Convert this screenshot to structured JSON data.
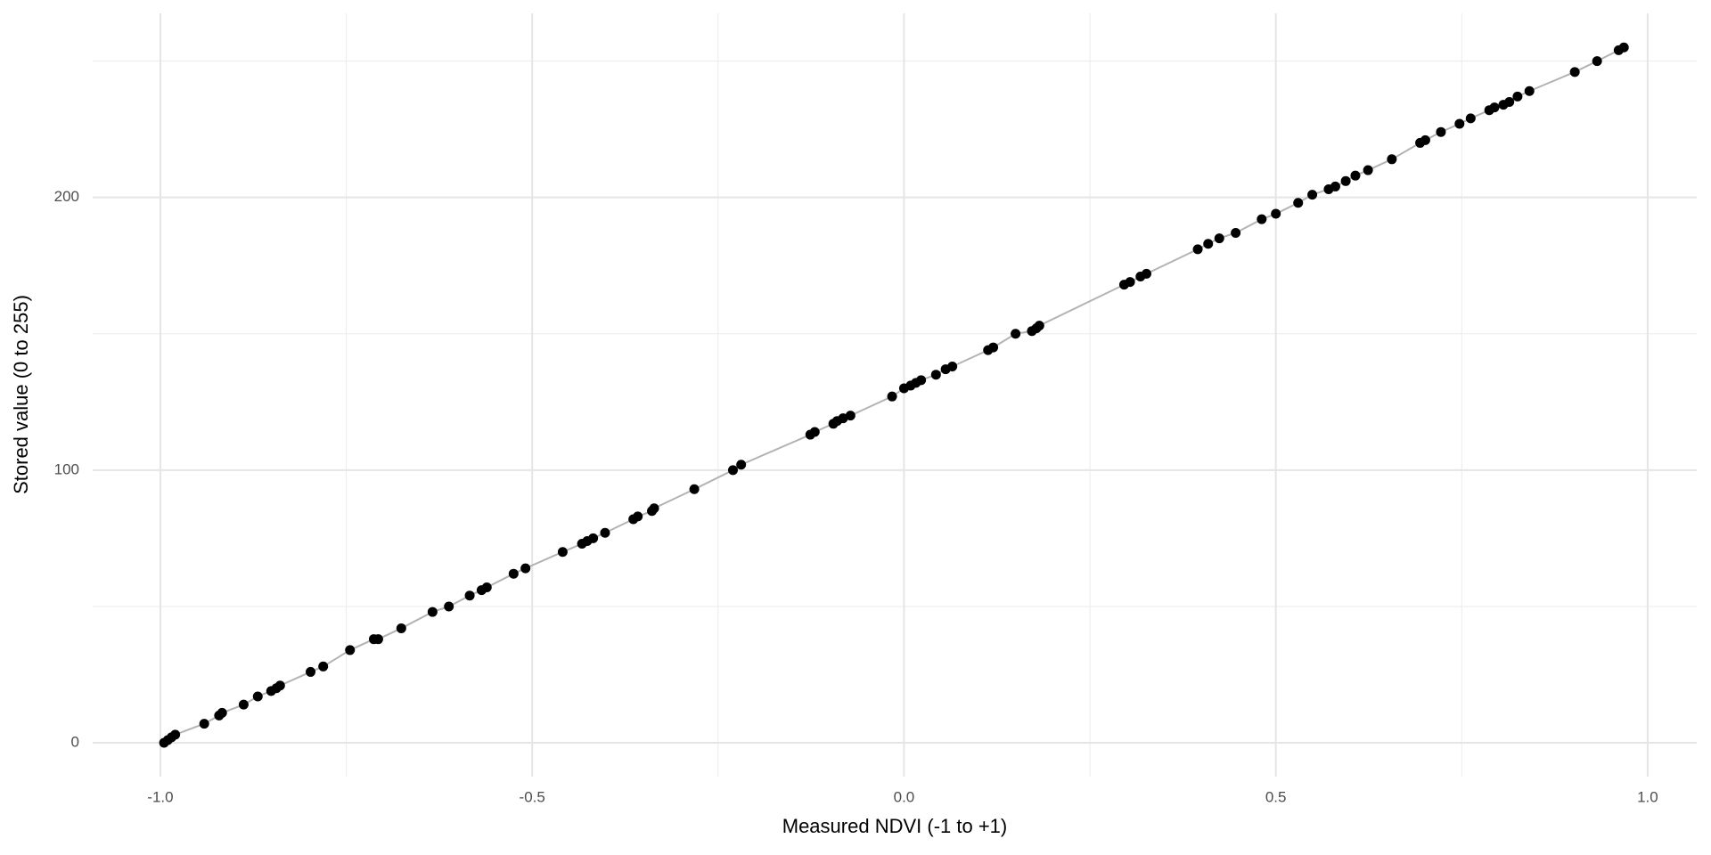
{
  "chart_data": {
    "type": "scatter",
    "xlabel": "Measured NDVI (-1 to +1)",
    "ylabel": "Stored value (0 to 255)",
    "xlim": [
      -1.091,
      1.066
    ],
    "ylim": [
      -12.4,
      267.5
    ],
    "xticks": [
      {
        "value": -1,
        "label": "-1.0"
      },
      -0.5,
      {
        "value": 0,
        "label": "0.0"
      },
      0.5,
      {
        "value": 1,
        "label": "1.0"
      }
    ],
    "yticks": [
      0,
      100,
      200
    ],
    "xminor": [
      -0.75,
      -0.25,
      0.25,
      0.75
    ],
    "yminor": [
      50,
      150,
      250
    ],
    "grid": true,
    "color": "#000000",
    "line_color": "#b3b3b3",
    "x": [
      -0.995,
      -0.99,
      -0.985,
      -0.98,
      -0.941,
      -0.921,
      -0.917,
      -0.888,
      -0.869,
      -0.851,
      -0.844,
      -0.839,
      -0.798,
      -0.781,
      -0.745,
      -0.713,
      -0.707,
      -0.676,
      -0.634,
      -0.612,
      -0.584,
      -0.568,
      -0.561,
      -0.525,
      -0.509,
      -0.459,
      -0.433,
      -0.426,
      -0.418,
      -0.402,
      -0.364,
      -0.358,
      -0.339,
      -0.336,
      -0.282,
      -0.23,
      -0.219,
      -0.126,
      -0.12,
      -0.095,
      -0.09,
      -0.082,
      -0.072,
      -0.016,
      0,
      0.009,
      0.016,
      0.023,
      0.043,
      0.056,
      0.065,
      0.113,
      0.12,
      0.15,
      0.172,
      0.178,
      0.182,
      0.296,
      0.304,
      0.318,
      0.326,
      0.395,
      0.409,
      0.424,
      0.446,
      0.481,
      0.5,
      0.53,
      0.549,
      0.571,
      0.58,
      0.594,
      0.607,
      0.624,
      0.656,
      0.694,
      0.701,
      0.722,
      0.747,
      0.762,
      0.787,
      0.794,
      0.806,
      0.814,
      0.825,
      0.841,
      0.902,
      0.932,
      0.961,
      0.968
    ],
    "values": [
      0,
      1,
      2,
      3,
      7,
      10,
      11,
      14,
      17,
      19,
      20,
      21,
      26,
      28,
      34,
      38,
      38,
      42,
      48,
      50,
      54,
      56,
      57,
      62,
      64,
      70,
      73,
      74,
      75,
      77,
      82,
      83,
      85,
      86,
      93,
      100,
      102,
      113,
      114,
      117,
      118,
      119,
      120,
      127,
      130,
      131,
      132,
      133,
      135,
      137,
      138,
      144,
      145,
      150,
      151,
      152,
      153,
      168,
      169,
      171,
      172,
      181,
      183,
      185,
      187,
      192,
      194,
      198,
      201,
      203,
      204,
      206,
      208,
      210,
      214,
      220,
      221,
      224,
      227,
      229,
      232,
      233,
      234,
      235,
      237,
      239,
      246,
      250,
      254,
      255
    ]
  }
}
